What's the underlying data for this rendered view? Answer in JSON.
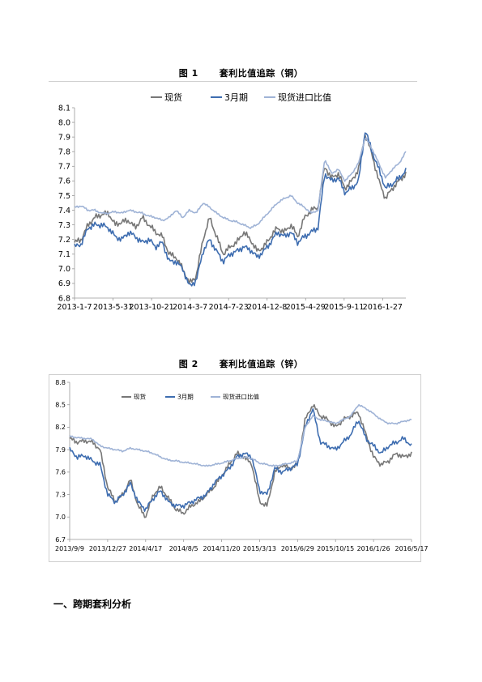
{
  "figure1": {
    "number": "图 1",
    "caption": "套利比值追踪（铜）"
  },
  "figure2": {
    "number": "图 2",
    "caption": "套利比值追踪（锌）"
  },
  "section": {
    "heading": "一、跨期套利分析"
  },
  "colors": {
    "spot": "#777777",
    "m3": "#3e6db0",
    "ratio": "#9fb3d6",
    "axis": "#999999"
  },
  "chart_data": [
    {
      "type": "line",
      "title": "",
      "legend_position": "top",
      "x_tick_labels": [
        "2013-1-7",
        "2013-5-31",
        "2013-10-21",
        "2014-3-7",
        "2014-7-23",
        "2014-12-8",
        "2015-4-29",
        "2015-9-11",
        "2016-1-27"
      ],
      "ylim": [
        6.8,
        8.1
      ],
      "y_ticks": [
        "6.8",
        "6.9",
        "7.0",
        "7.1",
        "7.2",
        "7.3",
        "7.4",
        "7.5",
        "7.6",
        "7.7",
        "7.8",
        "7.9",
        "8.0",
        "8.1"
      ],
      "series": [
        {
          "name": "现货",
          "values": [
            7.18,
            7.2,
            7.3,
            7.35,
            7.37,
            7.38,
            7.3,
            7.32,
            7.33,
            7.28,
            7.35,
            7.3,
            7.25,
            7.22,
            7.1,
            7.08,
            7.0,
            6.9,
            6.95,
            7.2,
            7.35,
            7.22,
            7.1,
            7.15,
            7.18,
            7.25,
            7.2,
            7.12,
            7.15,
            7.22,
            7.28,
            7.25,
            7.3,
            7.22,
            7.35,
            7.4,
            7.42,
            7.7,
            7.62,
            7.65,
            7.55,
            7.6,
            7.68,
            7.92,
            7.78,
            7.6,
            7.48,
            7.55,
            7.6,
            7.65
          ]
        },
        {
          "name": "3月期",
          "values": [
            7.15,
            7.17,
            7.28,
            7.3,
            7.3,
            7.28,
            7.22,
            7.2,
            7.25,
            7.22,
            7.18,
            7.2,
            7.15,
            7.18,
            7.05,
            7.05,
            7.0,
            6.88,
            6.92,
            7.12,
            7.2,
            7.12,
            7.05,
            7.1,
            7.12,
            7.15,
            7.13,
            7.08,
            7.12,
            7.18,
            7.25,
            7.22,
            7.25,
            7.18,
            7.22,
            7.25,
            7.28,
            7.65,
            7.6,
            7.62,
            7.52,
            7.55,
            7.6,
            7.95,
            7.8,
            7.68,
            7.55,
            7.58,
            7.62,
            7.67
          ]
        },
        {
          "name": "现货进口比值",
          "values": [
            7.42,
            7.43,
            7.4,
            7.4,
            7.38,
            7.38,
            7.39,
            7.38,
            7.4,
            7.39,
            7.38,
            7.36,
            7.35,
            7.33,
            7.35,
            7.4,
            7.35,
            7.4,
            7.38,
            7.45,
            7.42,
            7.38,
            7.35,
            7.33,
            7.32,
            7.3,
            7.28,
            7.3,
            7.35,
            7.4,
            7.45,
            7.48,
            7.5,
            7.45,
            7.42,
            7.38,
            7.4,
            7.75,
            7.65,
            7.68,
            7.6,
            7.65,
            7.72,
            7.9,
            7.82,
            7.72,
            7.62,
            7.68,
            7.72,
            7.8
          ]
        }
      ]
    },
    {
      "type": "line",
      "title": "",
      "legend_position": "top",
      "x_tick_labels": [
        "2013/9/9",
        "2013/12/27",
        "2014/4/17",
        "2014/8/5",
        "2014/11/20",
        "2015/3/13",
        "2015/6/29",
        "2015/10/15",
        "2016/1/26",
        "2016/5/17"
      ],
      "ylim": [
        6.7,
        8.8
      ],
      "y_ticks": [
        "6.7",
        "7.0",
        "7.3",
        "7.6",
        "7.9",
        "8.2",
        "8.5",
        "8.8"
      ],
      "series": [
        {
          "name": "现货",
          "values": [
            8.05,
            8.0,
            8.02,
            8.0,
            7.9,
            7.4,
            7.2,
            7.3,
            7.5,
            7.15,
            7.0,
            7.3,
            7.4,
            7.25,
            7.1,
            7.05,
            7.15,
            7.2,
            7.3,
            7.4,
            7.55,
            7.7,
            7.85,
            7.8,
            7.7,
            7.2,
            7.15,
            7.6,
            7.7,
            7.65,
            7.7,
            8.3,
            8.5,
            8.35,
            8.3,
            8.2,
            8.3,
            8.35,
            8.4,
            8.1,
            7.8,
            7.7,
            7.75,
            7.85,
            7.8,
            7.85
          ]
        },
        {
          "name": "3月期",
          "values": [
            7.9,
            7.8,
            7.82,
            7.75,
            7.7,
            7.3,
            7.2,
            7.3,
            7.45,
            7.2,
            7.1,
            7.25,
            7.35,
            7.2,
            7.15,
            7.15,
            7.2,
            7.25,
            7.3,
            7.45,
            7.55,
            7.65,
            7.8,
            7.85,
            7.8,
            7.35,
            7.3,
            7.65,
            7.6,
            7.65,
            7.7,
            8.2,
            8.45,
            8.0,
            7.95,
            7.9,
            8.0,
            8.1,
            8.3,
            8.05,
            7.95,
            7.85,
            7.95,
            8.0,
            8.05,
            7.95
          ]
        },
        {
          "name": "现货进口比值",
          "values": [
            8.08,
            8.06,
            8.05,
            8.04,
            7.95,
            7.92,
            7.9,
            7.88,
            7.92,
            7.9,
            7.88,
            7.85,
            7.8,
            7.76,
            7.75,
            7.73,
            7.72,
            7.7,
            7.68,
            7.7,
            7.72,
            7.75,
            7.78,
            7.8,
            7.78,
            7.72,
            7.7,
            7.68,
            7.7,
            7.72,
            7.75,
            8.2,
            8.35,
            8.3,
            8.28,
            8.25,
            8.3,
            8.35,
            8.5,
            8.45,
            8.38,
            8.3,
            8.25,
            8.25,
            8.28,
            8.3
          ]
        }
      ]
    }
  ]
}
